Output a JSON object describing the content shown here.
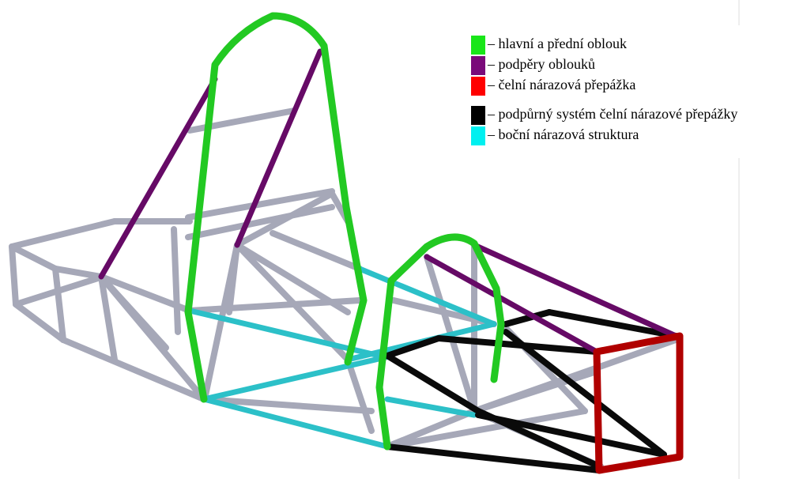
{
  "legend": [
    {
      "label": "– hlavní a přední oblouk",
      "color": "#19e619"
    },
    {
      "label": "– podpěry oblouků",
      "color": "#7a0a7a"
    },
    {
      "label": "– čelní nárazová přepážka",
      "color": "#ff0000"
    },
    {
      "label": "– podpůrný systém čelní nárazové přepážky",
      "color": "#000000"
    },
    {
      "label": "– boční nárazová struktura",
      "color": "#00f0f0"
    }
  ]
}
